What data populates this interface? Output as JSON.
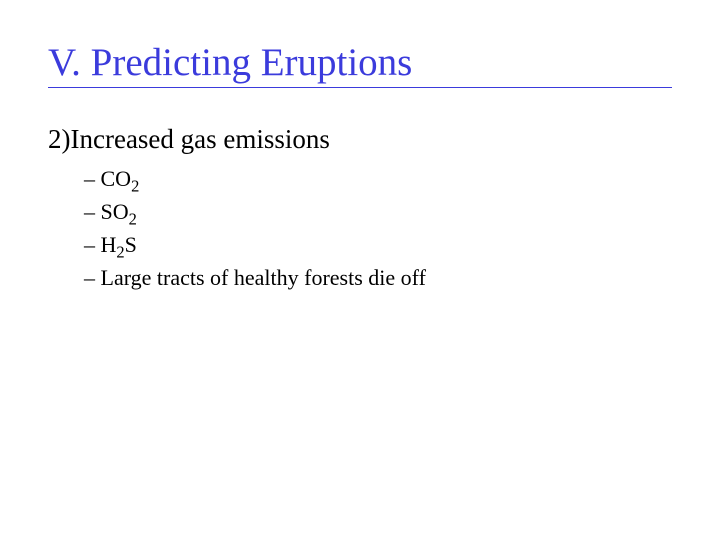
{
  "colors": {
    "title_color": "#3b3bdc",
    "body_color": "#000000",
    "background": "#ffffff",
    "underline_color": "#3b3bdc"
  },
  "typography": {
    "font_family": "Times New Roman",
    "title_fontsize": 39,
    "subtitle_fontsize": 27,
    "bullet_fontsize": 22
  },
  "slide": {
    "title": "V. Predicting Eruptions",
    "subtitle": "2)Increased gas emissions",
    "bullets": [
      {
        "dash": "– ",
        "pre": "CO",
        "sub": "2",
        "post": ""
      },
      {
        "dash": "– ",
        "pre": "SO",
        "sub": "2",
        "post": ""
      },
      {
        "dash": "– ",
        "pre": "H",
        "sub": "2",
        "post": "S"
      },
      {
        "dash": "– ",
        "pre": "Large tracts of healthy forests die off",
        "sub": "",
        "post": ""
      }
    ]
  }
}
